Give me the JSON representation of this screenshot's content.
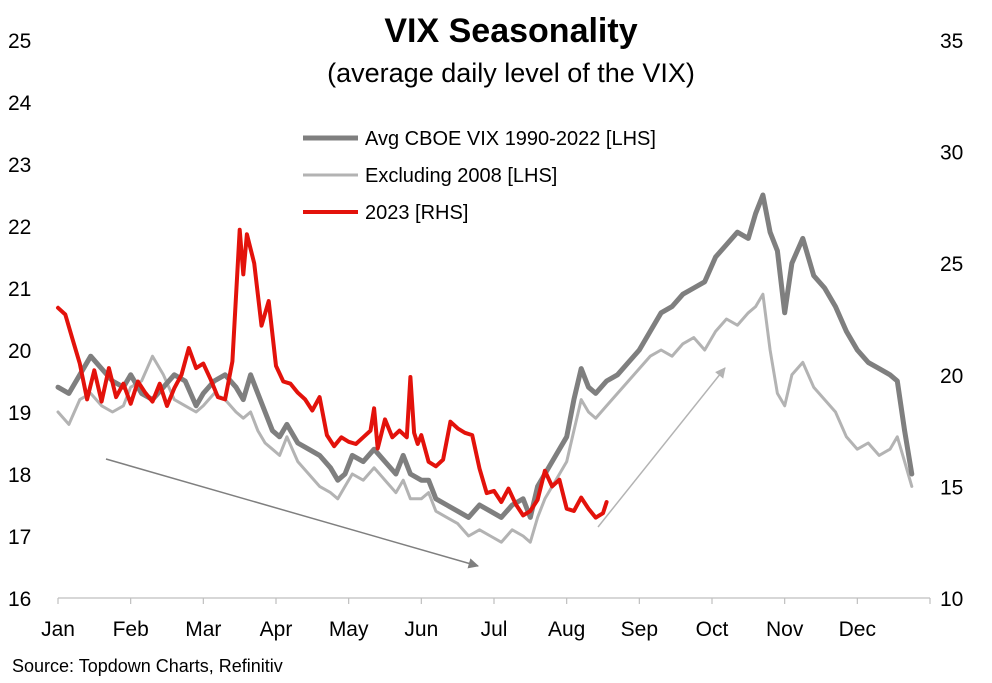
{
  "chart_data": {
    "type": "line",
    "title": "VIX Seasonality",
    "subtitle": "(average daily level of the VIX)",
    "source": "Source: Topdown Charts, Refinitiv",
    "x_categories": [
      "Jan",
      "Feb",
      "Mar",
      "Apr",
      "May",
      "Jun",
      "Jul",
      "Aug",
      "Sep",
      "Oct",
      "Nov",
      "Dec"
    ],
    "left_axis": {
      "ticks": [
        "25",
        "24",
        "23",
        "22",
        "21",
        "20",
        "19",
        "18",
        "17",
        "16"
      ],
      "min": 16,
      "max": 25
    },
    "right_axis": {
      "ticks": [
        "35",
        "30",
        "25",
        "20",
        "15",
        "10"
      ],
      "min": 10,
      "max": 35
    },
    "grid": false,
    "legend_placement": "top-center",
    "series": [
      {
        "name": "Avg CBOE VIX 1990-2022 [LHS]",
        "axis": "left",
        "color": "#7f7f7f",
        "points": [
          [
            0.0,
            19.4
          ],
          [
            0.15,
            19.3
          ],
          [
            0.3,
            19.6
          ],
          [
            0.45,
            19.9
          ],
          [
            0.6,
            19.7
          ],
          [
            0.75,
            19.5
          ],
          [
            0.9,
            19.4
          ],
          [
            1.0,
            19.6
          ],
          [
            1.15,
            19.3
          ],
          [
            1.3,
            19.2
          ],
          [
            1.45,
            19.4
          ],
          [
            1.6,
            19.6
          ],
          [
            1.75,
            19.5
          ],
          [
            1.9,
            19.1
          ],
          [
            2.0,
            19.3
          ],
          [
            2.15,
            19.5
          ],
          [
            2.3,
            19.6
          ],
          [
            2.45,
            19.4
          ],
          [
            2.55,
            19.2
          ],
          [
            2.65,
            19.6
          ],
          [
            2.75,
            19.3
          ],
          [
            2.85,
            19.0
          ],
          [
            2.95,
            18.7
          ],
          [
            3.05,
            18.6
          ],
          [
            3.15,
            18.8
          ],
          [
            3.3,
            18.5
          ],
          [
            3.45,
            18.4
          ],
          [
            3.6,
            18.3
          ],
          [
            3.75,
            18.1
          ],
          [
            3.85,
            17.9
          ],
          [
            3.95,
            18.0
          ],
          [
            4.05,
            18.3
          ],
          [
            4.2,
            18.2
          ],
          [
            4.35,
            18.4
          ],
          [
            4.5,
            18.2
          ],
          [
            4.65,
            18.0
          ],
          [
            4.75,
            18.3
          ],
          [
            4.85,
            18.0
          ],
          [
            5.0,
            17.9
          ],
          [
            5.1,
            17.9
          ],
          [
            5.2,
            17.6
          ],
          [
            5.35,
            17.5
          ],
          [
            5.5,
            17.4
          ],
          [
            5.65,
            17.3
          ],
          [
            5.8,
            17.5
          ],
          [
            5.95,
            17.4
          ],
          [
            6.1,
            17.3
          ],
          [
            6.25,
            17.5
          ],
          [
            6.4,
            17.6
          ],
          [
            6.5,
            17.3
          ],
          [
            6.6,
            17.8
          ],
          [
            6.7,
            18.0
          ],
          [
            6.85,
            18.3
          ],
          [
            7.0,
            18.6
          ],
          [
            7.1,
            19.2
          ],
          [
            7.2,
            19.7
          ],
          [
            7.3,
            19.4
          ],
          [
            7.4,
            19.3
          ],
          [
            7.55,
            19.5
          ],
          [
            7.7,
            19.6
          ],
          [
            7.85,
            19.8
          ],
          [
            8.0,
            20.0
          ],
          [
            8.15,
            20.3
          ],
          [
            8.3,
            20.6
          ],
          [
            8.45,
            20.7
          ],
          [
            8.6,
            20.9
          ],
          [
            8.75,
            21.0
          ],
          [
            8.9,
            21.1
          ],
          [
            9.05,
            21.5
          ],
          [
            9.2,
            21.7
          ],
          [
            9.35,
            21.9
          ],
          [
            9.5,
            21.8
          ],
          [
            9.6,
            22.2
          ],
          [
            9.7,
            22.5
          ],
          [
            9.8,
            21.9
          ],
          [
            9.9,
            21.6
          ],
          [
            10.0,
            20.6
          ],
          [
            10.1,
            21.4
          ],
          [
            10.25,
            21.8
          ],
          [
            10.4,
            21.2
          ],
          [
            10.55,
            21.0
          ],
          [
            10.7,
            20.7
          ],
          [
            10.85,
            20.3
          ],
          [
            11.0,
            20.0
          ],
          [
            11.15,
            19.8
          ],
          [
            11.3,
            19.7
          ],
          [
            11.45,
            19.6
          ],
          [
            11.55,
            19.5
          ],
          [
            11.65,
            18.7
          ],
          [
            11.75,
            18.0
          ]
        ]
      },
      {
        "name": "Excluding 2008 [LHS]",
        "axis": "left",
        "color": "#b3b3b3",
        "points": [
          [
            0.0,
            19.0
          ],
          [
            0.15,
            18.8
          ],
          [
            0.3,
            19.2
          ],
          [
            0.45,
            19.3
          ],
          [
            0.6,
            19.1
          ],
          [
            0.75,
            19.0
          ],
          [
            0.9,
            19.1
          ],
          [
            1.0,
            19.4
          ],
          [
            1.15,
            19.5
          ],
          [
            1.3,
            19.9
          ],
          [
            1.45,
            19.6
          ],
          [
            1.6,
            19.2
          ],
          [
            1.75,
            19.1
          ],
          [
            1.9,
            19.0
          ],
          [
            2.0,
            19.1
          ],
          [
            2.15,
            19.3
          ],
          [
            2.3,
            19.2
          ],
          [
            2.45,
            19.0
          ],
          [
            2.55,
            18.9
          ],
          [
            2.65,
            19.0
          ],
          [
            2.75,
            18.7
          ],
          [
            2.85,
            18.5
          ],
          [
            2.95,
            18.4
          ],
          [
            3.05,
            18.3
          ],
          [
            3.15,
            18.6
          ],
          [
            3.3,
            18.2
          ],
          [
            3.45,
            18.0
          ],
          [
            3.6,
            17.8
          ],
          [
            3.75,
            17.7
          ],
          [
            3.85,
            17.6
          ],
          [
            3.95,
            17.8
          ],
          [
            4.05,
            18.0
          ],
          [
            4.2,
            17.9
          ],
          [
            4.35,
            18.1
          ],
          [
            4.5,
            17.9
          ],
          [
            4.65,
            17.7
          ],
          [
            4.75,
            17.9
          ],
          [
            4.85,
            17.6
          ],
          [
            5.0,
            17.6
          ],
          [
            5.1,
            17.7
          ],
          [
            5.2,
            17.4
          ],
          [
            5.35,
            17.3
          ],
          [
            5.5,
            17.2
          ],
          [
            5.65,
            17.0
          ],
          [
            5.8,
            17.1
          ],
          [
            5.95,
            17.0
          ],
          [
            6.1,
            16.9
          ],
          [
            6.25,
            17.1
          ],
          [
            6.4,
            17.0
          ],
          [
            6.5,
            16.9
          ],
          [
            6.6,
            17.3
          ],
          [
            6.7,
            17.6
          ],
          [
            6.85,
            17.9
          ],
          [
            7.0,
            18.2
          ],
          [
            7.1,
            18.7
          ],
          [
            7.2,
            19.2
          ],
          [
            7.3,
            19.0
          ],
          [
            7.4,
            18.9
          ],
          [
            7.55,
            19.1
          ],
          [
            7.7,
            19.3
          ],
          [
            7.85,
            19.5
          ],
          [
            8.0,
            19.7
          ],
          [
            8.15,
            19.9
          ],
          [
            8.3,
            20.0
          ],
          [
            8.45,
            19.9
          ],
          [
            8.6,
            20.1
          ],
          [
            8.75,
            20.2
          ],
          [
            8.9,
            20.0
          ],
          [
            9.05,
            20.3
          ],
          [
            9.2,
            20.5
          ],
          [
            9.35,
            20.4
          ],
          [
            9.5,
            20.6
          ],
          [
            9.6,
            20.7
          ],
          [
            9.7,
            20.9
          ],
          [
            9.8,
            20.0
          ],
          [
            9.9,
            19.3
          ],
          [
            10.0,
            19.1
          ],
          [
            10.1,
            19.6
          ],
          [
            10.25,
            19.8
          ],
          [
            10.4,
            19.4
          ],
          [
            10.55,
            19.2
          ],
          [
            10.7,
            19.0
          ],
          [
            10.85,
            18.6
          ],
          [
            11.0,
            18.4
          ],
          [
            11.15,
            18.5
          ],
          [
            11.3,
            18.3
          ],
          [
            11.45,
            18.4
          ],
          [
            11.55,
            18.6
          ],
          [
            11.65,
            18.2
          ],
          [
            11.75,
            17.8
          ]
        ]
      },
      {
        "name": "2023 [RHS]",
        "axis": "right",
        "color": "#e3120b",
        "points": [
          [
            0.0,
            23.0
          ],
          [
            0.1,
            22.7
          ],
          [
            0.2,
            21.6
          ],
          [
            0.3,
            20.5
          ],
          [
            0.4,
            18.9
          ],
          [
            0.5,
            20.2
          ],
          [
            0.6,
            18.8
          ],
          [
            0.7,
            20.3
          ],
          [
            0.8,
            19.0
          ],
          [
            0.9,
            19.6
          ],
          [
            1.0,
            18.7
          ],
          [
            1.1,
            19.7
          ],
          [
            1.2,
            19.2
          ],
          [
            1.3,
            18.8
          ],
          [
            1.4,
            19.6
          ],
          [
            1.5,
            18.6
          ],
          [
            1.6,
            19.4
          ],
          [
            1.7,
            20.0
          ],
          [
            1.8,
            21.2
          ],
          [
            1.9,
            20.3
          ],
          [
            2.0,
            20.5
          ],
          [
            2.1,
            19.8
          ],
          [
            2.2,
            19.0
          ],
          [
            2.3,
            18.9
          ],
          [
            2.4,
            20.6
          ],
          [
            2.5,
            26.5
          ],
          [
            2.55,
            24.5
          ],
          [
            2.6,
            26.3
          ],
          [
            2.7,
            25.0
          ],
          [
            2.8,
            22.2
          ],
          [
            2.9,
            23.3
          ],
          [
            3.0,
            20.4
          ],
          [
            3.1,
            19.7
          ],
          [
            3.2,
            19.6
          ],
          [
            3.3,
            19.2
          ],
          [
            3.4,
            18.9
          ],
          [
            3.5,
            18.4
          ],
          [
            3.6,
            19.0
          ],
          [
            3.7,
            17.3
          ],
          [
            3.8,
            16.8
          ],
          [
            3.9,
            17.2
          ],
          [
            4.0,
            17.0
          ],
          [
            4.1,
            16.9
          ],
          [
            4.2,
            17.2
          ],
          [
            4.3,
            17.5
          ],
          [
            4.35,
            18.5
          ],
          [
            4.4,
            16.7
          ],
          [
            4.5,
            18.0
          ],
          [
            4.6,
            17.2
          ],
          [
            4.7,
            17.5
          ],
          [
            4.8,
            17.2
          ],
          [
            4.85,
            19.9
          ],
          [
            4.9,
            17.4
          ],
          [
            4.95,
            16.9
          ],
          [
            5.0,
            17.3
          ],
          [
            5.1,
            16.1
          ],
          [
            5.2,
            15.9
          ],
          [
            5.3,
            16.2
          ],
          [
            5.4,
            17.9
          ],
          [
            5.5,
            17.6
          ],
          [
            5.6,
            17.4
          ],
          [
            5.7,
            17.3
          ],
          [
            5.8,
            15.8
          ],
          [
            5.9,
            14.7
          ],
          [
            6.0,
            14.8
          ],
          [
            6.1,
            14.3
          ],
          [
            6.2,
            14.9
          ],
          [
            6.3,
            14.2
          ],
          [
            6.4,
            13.7
          ],
          [
            6.5,
            13.9
          ],
          [
            6.6,
            14.4
          ],
          [
            6.7,
            15.7
          ],
          [
            6.8,
            15.0
          ],
          [
            6.9,
            15.3
          ],
          [
            7.0,
            14.0
          ],
          [
            7.1,
            13.9
          ],
          [
            7.2,
            14.5
          ],
          [
            7.3,
            14.0
          ],
          [
            7.4,
            13.6
          ],
          [
            7.5,
            13.8
          ],
          [
            7.55,
            14.3
          ]
        ]
      }
    ]
  }
}
